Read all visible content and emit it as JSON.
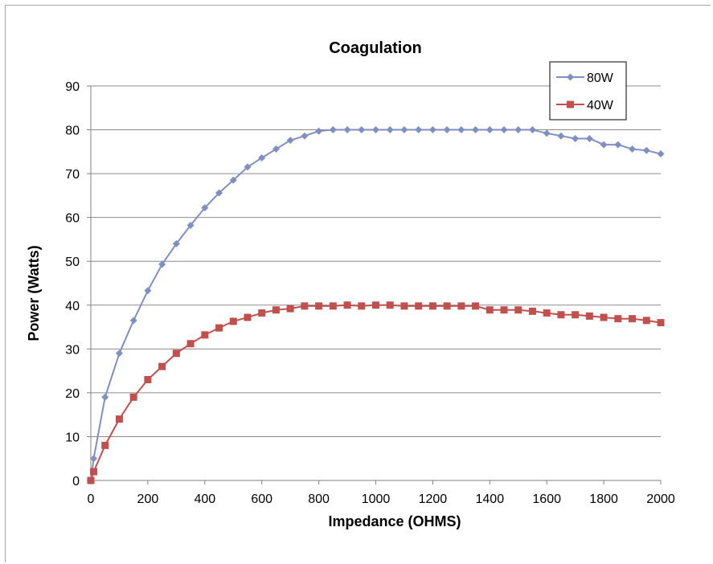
{
  "chart_data": {
    "type": "line",
    "title": "Coagulation",
    "xlabel": "Impedance (OHMS)",
    "ylabel": "Power (Watts)",
    "xlim": [
      0,
      2000
    ],
    "ylim": [
      0,
      90
    ],
    "xticks": [
      0,
      200,
      400,
      600,
      800,
      1000,
      1200,
      1400,
      1600,
      1800,
      2000
    ],
    "yticks": [
      0,
      10,
      20,
      30,
      40,
      50,
      60,
      70,
      80,
      90
    ],
    "grid": "horizontal",
    "legend_position": "top-right",
    "series": [
      {
        "name": "80W",
        "color": "#7f8fc0",
        "marker": "diamond",
        "points": [
          [
            0,
            0
          ],
          [
            10,
            5
          ],
          [
            50,
            19
          ],
          [
            100,
            29
          ],
          [
            150,
            36.5
          ],
          [
            200,
            43.3
          ],
          [
            250,
            49.3
          ],
          [
            300,
            54
          ],
          [
            350,
            58.2
          ],
          [
            400,
            62.2
          ],
          [
            450,
            65.6
          ],
          [
            500,
            68.5
          ],
          [
            550,
            71.5
          ],
          [
            600,
            73.6
          ],
          [
            650,
            75.6
          ],
          [
            700,
            77.6
          ],
          [
            750,
            78.6
          ],
          [
            800,
            79.7
          ],
          [
            850,
            80
          ],
          [
            900,
            80
          ],
          [
            950,
            80
          ],
          [
            1000,
            80
          ],
          [
            1050,
            80
          ],
          [
            1100,
            80
          ],
          [
            1150,
            80
          ],
          [
            1200,
            80
          ],
          [
            1250,
            80
          ],
          [
            1300,
            80
          ],
          [
            1350,
            80
          ],
          [
            1400,
            80
          ],
          [
            1450,
            80
          ],
          [
            1500,
            80
          ],
          [
            1550,
            80
          ],
          [
            1600,
            79.2
          ],
          [
            1650,
            78.6
          ],
          [
            1700,
            78
          ],
          [
            1750,
            78
          ],
          [
            1800,
            76.6
          ],
          [
            1850,
            76.6
          ],
          [
            1900,
            75.6
          ],
          [
            1950,
            75.3
          ],
          [
            2000,
            74.5
          ]
        ]
      },
      {
        "name": "40W",
        "color": "#c0504d",
        "marker": "square",
        "points": [
          [
            0,
            0
          ],
          [
            10,
            2
          ],
          [
            50,
            8
          ],
          [
            100,
            14
          ],
          [
            150,
            19
          ],
          [
            200,
            23
          ],
          [
            250,
            26
          ],
          [
            300,
            29
          ],
          [
            350,
            31.2
          ],
          [
            400,
            33.2
          ],
          [
            450,
            34.8
          ],
          [
            500,
            36.3
          ],
          [
            550,
            37.2
          ],
          [
            600,
            38.2
          ],
          [
            650,
            38.9
          ],
          [
            700,
            39.2
          ],
          [
            750,
            39.8
          ],
          [
            800,
            39.8
          ],
          [
            850,
            39.8
          ],
          [
            900,
            40
          ],
          [
            950,
            39.8
          ],
          [
            1000,
            40
          ],
          [
            1050,
            40
          ],
          [
            1100,
            39.8
          ],
          [
            1150,
            39.8
          ],
          [
            1200,
            39.8
          ],
          [
            1250,
            39.8
          ],
          [
            1300,
            39.8
          ],
          [
            1350,
            39.8
          ],
          [
            1400,
            38.9
          ],
          [
            1450,
            38.9
          ],
          [
            1500,
            38.9
          ],
          [
            1550,
            38.6
          ],
          [
            1600,
            38.2
          ],
          [
            1650,
            37.8
          ],
          [
            1700,
            37.8
          ],
          [
            1750,
            37.5
          ],
          [
            1800,
            37.2
          ],
          [
            1850,
            36.9
          ],
          [
            1900,
            36.9
          ],
          [
            1950,
            36.5
          ],
          [
            2000,
            36
          ]
        ]
      }
    ]
  }
}
